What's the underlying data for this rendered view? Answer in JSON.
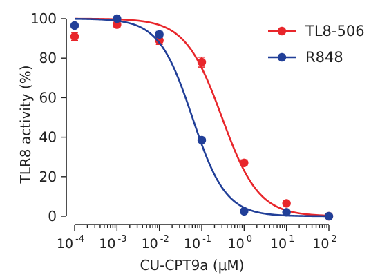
{
  "chart_data": {
    "type": "scatter",
    "title": "",
    "xlabel": "CU-CPT9a (μM)",
    "ylabel": "TLR8 activity (%)",
    "x_scale": "log",
    "xlim": [
      0.0001,
      100
    ],
    "ylim": [
      0,
      100
    ],
    "x_tick_labels": [
      {
        "base": "10",
        "exp": "-4"
      },
      {
        "base": "10",
        "exp": "-3"
      },
      {
        "base": "10",
        "exp": "-2"
      },
      {
        "base": "10",
        "exp": "-1"
      },
      {
        "base": "10",
        "exp": "0"
      },
      {
        "base": "10",
        "exp": "1"
      },
      {
        "base": "10",
        "exp": "2"
      }
    ],
    "y_tick_labels": [
      "0",
      "20",
      "40",
      "60",
      "80",
      "100"
    ],
    "y_ticks": [
      0,
      20,
      40,
      60,
      80,
      100
    ],
    "x_ticks": [
      0.0001,
      0.001,
      0.01,
      0.1,
      1,
      10,
      100
    ],
    "grid": false,
    "legend_position": "top-right",
    "series": [
      {
        "name": "TL8-506",
        "color": "#e8262b",
        "x": [
          0.0001,
          0.001,
          0.01,
          0.1,
          1,
          10,
          100
        ],
        "y": [
          91,
          97,
          89,
          78,
          27,
          6.5,
          0
        ],
        "error": [
          2,
          1.5,
          2,
          2.5,
          1.5,
          1,
          0.5
        ],
        "fit": {
          "top": 100,
          "bottom": 0,
          "ic50": 0.3,
          "hill": 1.0
        }
      },
      {
        "name": "R848",
        "color": "#213f98",
        "x": [
          0.0001,
          0.001,
          0.01,
          0.1,
          1,
          10,
          100
        ],
        "y": [
          96.5,
          100,
          92,
          38.5,
          2.5,
          2,
          0
        ],
        "error": [
          1,
          1,
          1.5,
          1,
          0.5,
          0.5,
          0.5
        ],
        "fit": {
          "top": 100,
          "bottom": 0,
          "ic50": 0.06,
          "hill": 1.1
        }
      }
    ]
  }
}
